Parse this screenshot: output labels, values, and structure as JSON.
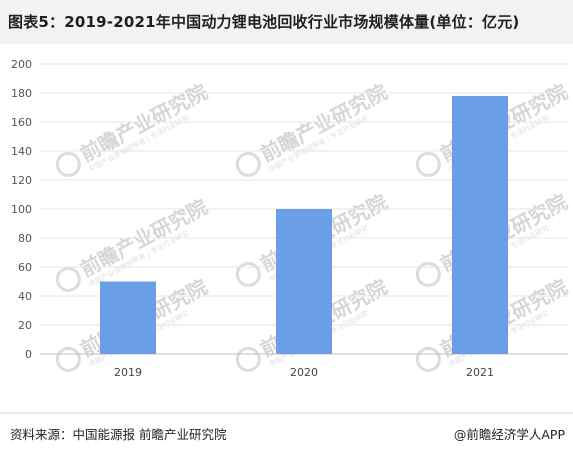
{
  "title": "图表5：2019-2021年中国动力锂电池回收行业市场规模体量(单位：亿元)",
  "source": "资料来源：中国能源报 前瞻产业研究院",
  "brand": "@前瞻经济学人APP",
  "watermark": {
    "text": "前瞻产业研究院",
    "subtext": "中国产业咨询领导者 | 专注行业研究"
  },
  "colors": {
    "bar": "#6a9fe8",
    "grid": "#e6e6e6",
    "axis": "#bfbfbf"
  },
  "chart_data": {
    "type": "bar",
    "categories": [
      "2019",
      "2020",
      "2021"
    ],
    "values": [
      50,
      100,
      178
    ],
    "ylim": [
      0,
      200
    ],
    "yticks": [
      0,
      20,
      40,
      60,
      80,
      100,
      120,
      140,
      160,
      180,
      200
    ],
    "xlabel": "",
    "ylabel": "",
    "grid": true
  }
}
